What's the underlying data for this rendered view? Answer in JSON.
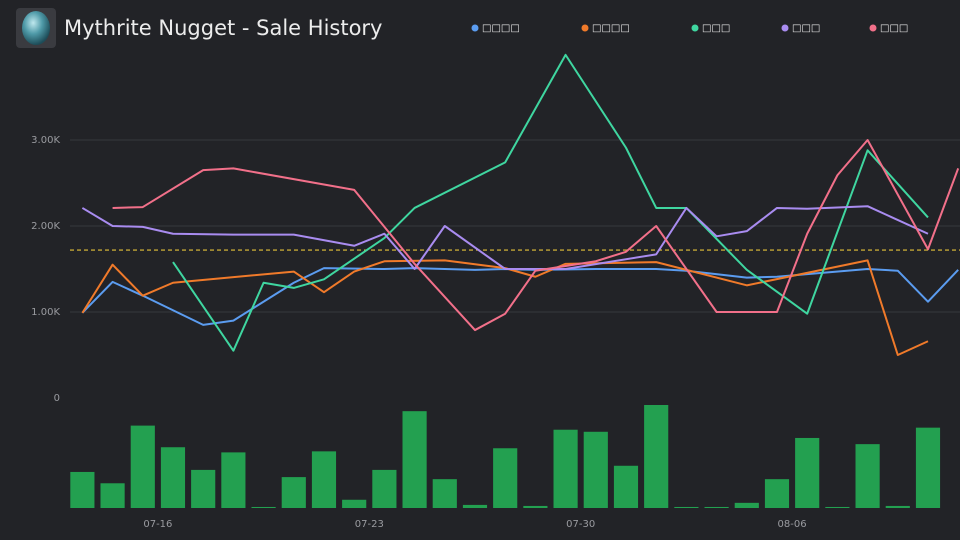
{
  "chart_data": {
    "type": "line",
    "title": "Mythrite Nugget - Sale History",
    "xlim": [
      13.09,
      42.56
    ],
    "xticks": [
      {
        "value": 16,
        "label": "07-16"
      },
      {
        "value": 23,
        "label": "07-23"
      },
      {
        "value": 30,
        "label": "07-30"
      },
      {
        "value": 37,
        "label": "08-06"
      }
    ],
    "ylim": [
      0,
      4000
    ],
    "yticks": [
      0,
      {
        "value": 1000,
        "label": "1.00K"
      },
      {
        "value": 2000,
        "label": "2.00K"
      },
      {
        "value": 3000,
        "label": "3.00K"
      }
    ],
    "grid": true,
    "average": 1720,
    "average_color": "#e6c33a",
    "series": [
      {
        "name": "□□□□",
        "color": "#5b9cf0",
        "x": [
          13.5,
          14.5,
          15.5,
          17.5,
          18.5,
          20.5,
          21.5,
          23.5,
          24.5,
          26.5,
          27.5,
          28.5,
          30.5,
          32.5,
          33.5,
          35.5,
          36.5,
          37.5,
          39.5,
          40.5,
          41.5,
          42.5
        ],
        "values": [
          990,
          1350,
          1190,
          850,
          900,
          1340,
          1510,
          1500,
          1510,
          1490,
          1500,
          1490,
          1500,
          1500,
          1480,
          1400,
          1410,
          1440,
          1500,
          1480,
          1120,
          1490
        ]
      },
      {
        "name": "□□□□",
        "color": "#f07a2a",
        "x": [
          13.5,
          14.5,
          15.5,
          16.5,
          20.5,
          21.5,
          22.5,
          23.5,
          25.5,
          27.5,
          28.5,
          29.5,
          32.5,
          35.5,
          39.5,
          40.5,
          41.5
        ],
        "values": [
          990,
          1550,
          1190,
          1340,
          1470,
          1230,
          1470,
          1590,
          1600,
          1510,
          1410,
          1560,
          1580,
          1310,
          1600,
          500,
          660
        ]
      },
      {
        "name": "□□□",
        "color": "#3fd6a0",
        "x": [
          16.5,
          18.5,
          19.5,
          20.5,
          21.5,
          23.5,
          24.5,
          27.5,
          29.5,
          31.5,
          32.5,
          33.5,
          35.5,
          37.5,
          39.5,
          41.5
        ],
        "values": [
          1580,
          550,
          1340,
          1280,
          1380,
          1860,
          2210,
          2740,
          3990,
          2910,
          2210,
          2210,
          1490,
          980,
          2880,
          2100
        ]
      },
      {
        "name": "□□□",
        "color": "#a98cf0",
        "x": [
          13.5,
          14.5,
          15.5,
          16.5,
          18.5,
          20.5,
          22.5,
          23.5,
          24.5,
          25.5,
          27.5,
          29.5,
          32.5,
          33.5,
          34.5,
          35.5,
          36.5,
          37.5,
          39.5,
          41.5
        ],
        "values": [
          2210,
          2000,
          1990,
          1910,
          1900,
          1900,
          1770,
          1910,
          1500,
          2000,
          1500,
          1500,
          1670,
          2210,
          1880,
          1940,
          2210,
          2200,
          2230,
          1910
        ]
      },
      {
        "name": "□□□",
        "color": "#f2708a",
        "x": [
          14.5,
          15.5,
          17.5,
          18.5,
          22.5,
          24.5,
          26.5,
          27.5,
          28.5,
          30.5,
          31.5,
          32.5,
          34.5,
          36.5,
          37.5,
          38.5,
          39.5,
          41.5,
          42.5
        ],
        "values": [
          2210,
          2220,
          2650,
          2670,
          2420,
          1560,
          790,
          980,
          1480,
          1590,
          1700,
          2000,
          1000,
          1000,
          1910,
          2590,
          3000,
          1730,
          2670
        ]
      }
    ],
    "volume": {
      "color": "#23a050",
      "ylim": [
        0,
        100
      ],
      "x": [
        13.5,
        14.5,
        15.5,
        16.5,
        17.5,
        18.5,
        19.5,
        20.5,
        21.5,
        22.5,
        23.5,
        24.5,
        25.5,
        26.5,
        27.5,
        28.5,
        29.5,
        30.5,
        31.5,
        32.5,
        33.5,
        34.5,
        35.5,
        36.5,
        37.5,
        38.5,
        39.5,
        40.5,
        41.5
      ],
      "values": [
        35,
        24,
        80,
        59,
        37,
        54,
        1,
        30,
        55,
        8,
        37,
        94,
        28,
        3,
        58,
        2,
        76,
        74,
        41,
        100,
        1,
        1,
        5,
        28,
        68,
        1,
        62,
        2,
        78
      ]
    }
  }
}
